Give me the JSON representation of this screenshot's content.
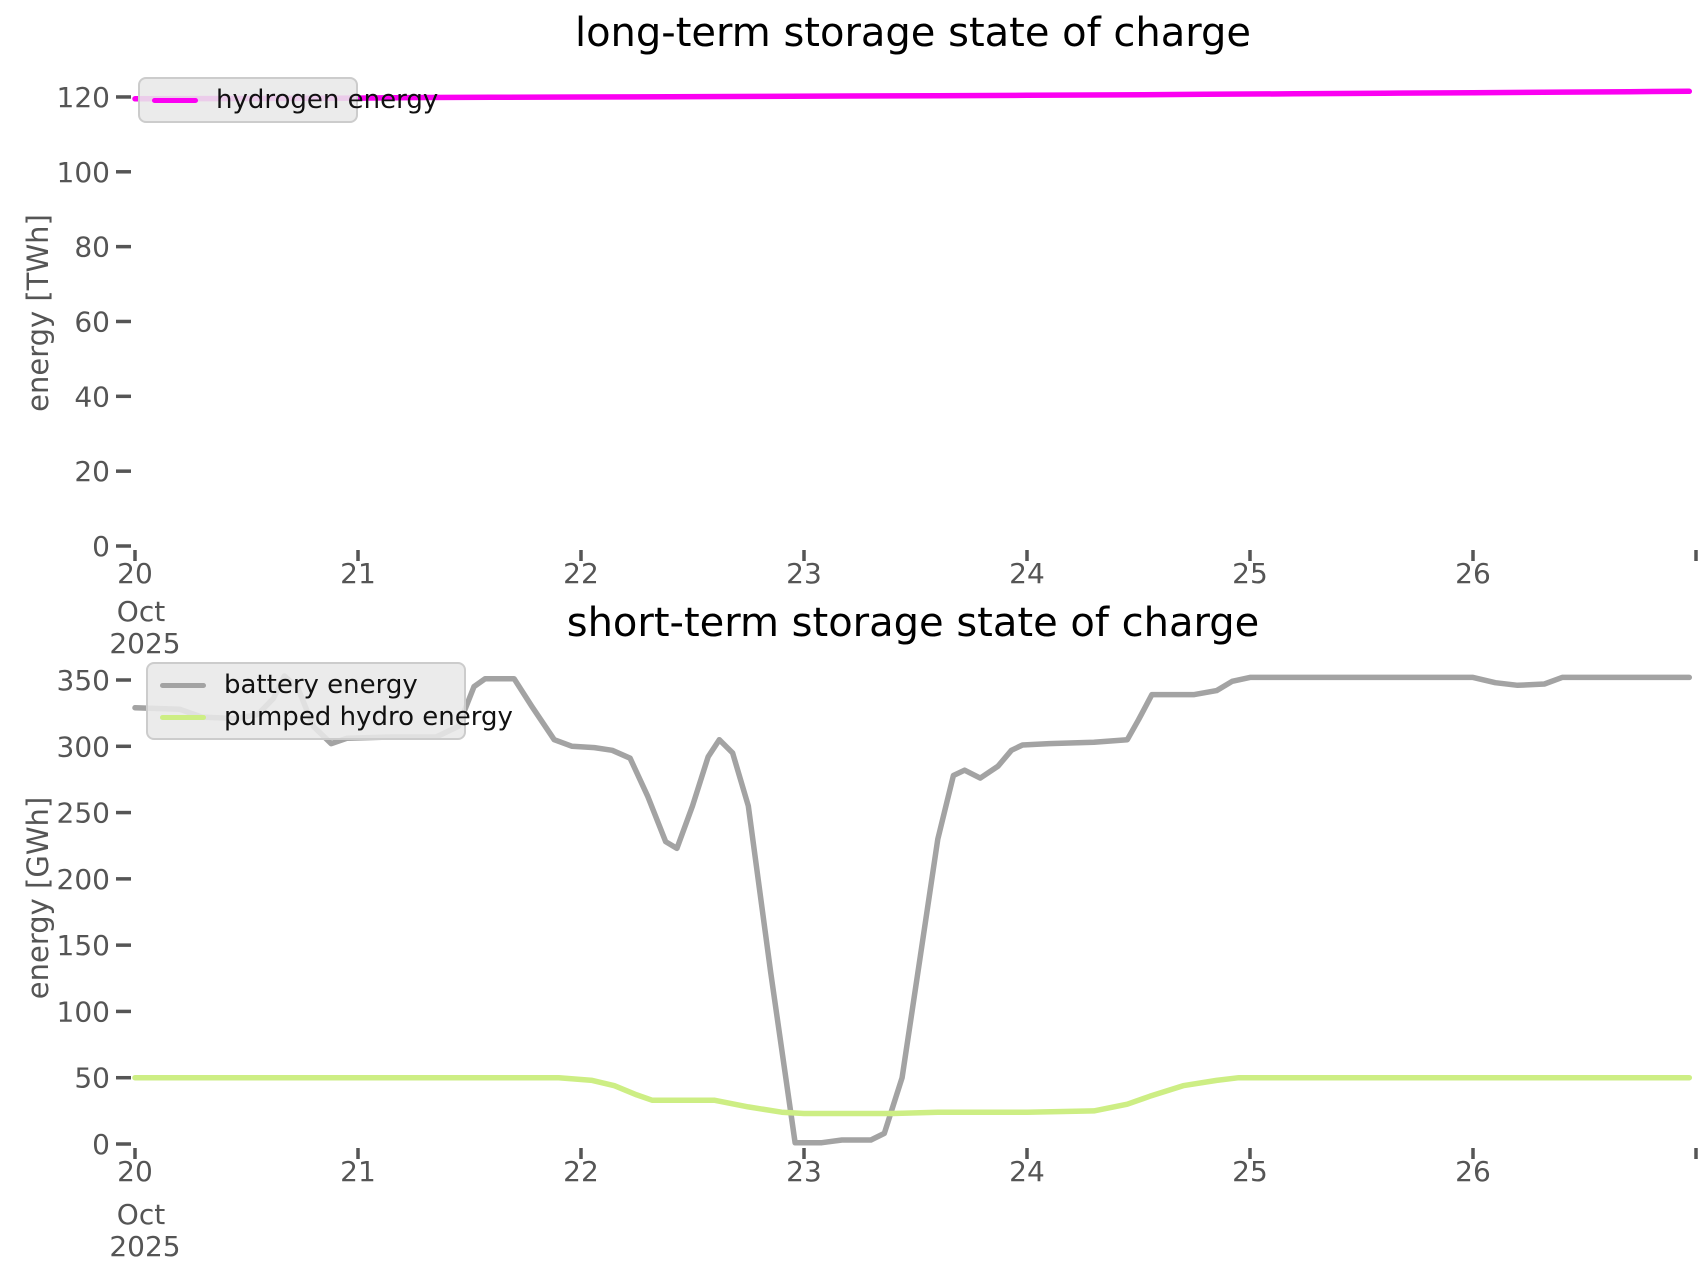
{
  "style": {
    "tick_color": "#555555",
    "tick_label_color": "#555555",
    "title_color": "#000000",
    "legend_bg": "#e8e8e8",
    "legend_border": "#cccccc"
  },
  "chart_data": [
    {
      "type": "line",
      "title": "long-term storage state of charge",
      "xlabel": "",
      "ylabel": "energy [TWh]",
      "x_axis": {
        "unit": "date",
        "tick_positions": [
          20,
          21,
          22,
          23,
          24,
          25,
          26,
          27
        ],
        "tick_labels": [
          "20",
          "21",
          "22",
          "23",
          "24",
          "25",
          "26",
          ""
        ],
        "first_tick_month": "Oct",
        "first_tick_year": "2025",
        "xlim": [
          20,
          27.03
        ]
      },
      "y_axis": {
        "ticks": [
          0,
          20,
          40,
          60,
          80,
          100,
          120
        ],
        "ylim": [
          0,
          130
        ]
      },
      "grid": false,
      "legend_position": "upper left",
      "series": [
        {
          "name": "hydrogen energy",
          "color": "#fb00f2",
          "x": [
            20,
            20.5,
            21,
            21.3,
            21.6,
            22,
            22.4,
            22.8,
            23.2,
            23.6,
            24,
            24.4,
            24.8,
            25.2,
            25.6,
            26,
            26.4,
            26.7,
            26.97
          ],
          "y": [
            119.5,
            119.6,
            119.7,
            119.85,
            119.9,
            120.0,
            120.05,
            120.15,
            120.25,
            120.35,
            120.45,
            120.55,
            120.7,
            120.85,
            121.0,
            121.15,
            121.3,
            121.4,
            121.5
          ]
        }
      ]
    },
    {
      "type": "line",
      "title": "short-term storage state of charge",
      "xlabel": "",
      "ylabel": "energy [GWh]",
      "x_axis": {
        "unit": "date",
        "tick_positions": [
          20,
          21,
          22,
          23,
          24,
          25,
          26,
          27
        ],
        "tick_labels": [
          "20",
          "21",
          "22",
          "23",
          "24",
          "25",
          "26",
          ""
        ],
        "first_tick_month": "Oct",
        "first_tick_year": "2025",
        "xlim": [
          20,
          27.03
        ]
      },
      "y_axis": {
        "ticks": [
          0,
          50,
          100,
          150,
          200,
          250,
          300,
          350
        ],
        "ylim": [
          0,
          360
        ]
      },
      "grid": false,
      "legend_position": "upper left",
      "series": [
        {
          "name": "battery energy",
          "color": "#a3a3a3",
          "x": [
            20,
            20.2,
            20.3,
            20.45,
            20.55,
            20.62,
            20.67,
            20.73,
            20.8,
            20.88,
            20.95,
            21.15,
            21.35,
            21.45,
            21.52,
            21.57,
            21.7,
            21.78,
            21.88,
            21.96,
            22.06,
            22.14,
            22.22,
            22.3,
            22.38,
            22.43,
            22.5,
            22.57,
            22.62,
            22.68,
            22.75,
            22.85,
            22.96,
            23.08,
            23.17,
            23.3,
            23.36,
            23.44,
            23.52,
            23.6,
            23.67,
            23.72,
            23.79,
            23.87,
            23.93,
            23.98,
            24.1,
            24.3,
            24.45,
            24.5,
            24.56,
            24.75,
            24.85,
            24.92,
            25.0,
            25.4,
            26.0,
            26.1,
            26.2,
            26.32,
            26.4,
            26.97
          ],
          "y": [
            329,
            328,
            322,
            321,
            324,
            336,
            353,
            344,
            315,
            302,
            306,
            307,
            307,
            315,
            345,
            351,
            351,
            330,
            305,
            300,
            299,
            297,
            291,
            262,
            228,
            223,
            255,
            292,
            305,
            295,
            255,
            130,
            1,
            1,
            3,
            3,
            8,
            50,
            140,
            230,
            278,
            282,
            276,
            285,
            297,
            301,
            302,
            303,
            305,
            320,
            339,
            339,
            342,
            349,
            352,
            352,
            352,
            348,
            346,
            347,
            352,
            352
          ]
        },
        {
          "name": "pumped hydro energy",
          "color": "#cdee84",
          "x": [
            20,
            21,
            21.9,
            22.05,
            22.15,
            22.25,
            22.32,
            22.6,
            22.75,
            22.9,
            23.0,
            23.4,
            23.6,
            24.0,
            24.3,
            24.45,
            24.55,
            24.7,
            24.85,
            24.95,
            25.5,
            26.97
          ],
          "y": [
            50,
            50,
            50,
            48,
            44,
            37,
            33,
            33,
            28,
            24,
            23,
            23,
            24,
            24,
            25,
            30,
            36,
            44,
            48,
            50,
            50,
            50
          ]
        }
      ]
    }
  ]
}
